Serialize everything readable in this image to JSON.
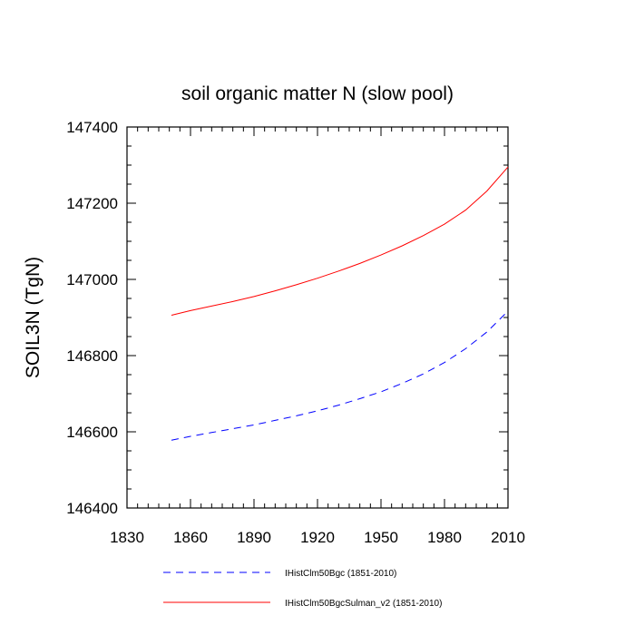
{
  "chart_data": {
    "type": "line",
    "title": "soil organic matter N (slow pool)",
    "xlabel": "",
    "ylabel": "SOIL3N  (TgN)",
    "xlim": [
      1830,
      2010
    ],
    "ylim": [
      146400,
      147400
    ],
    "x_ticks": [
      1830,
      1860,
      1890,
      1920,
      1950,
      1980,
      2010
    ],
    "y_ticks": [
      146400,
      146600,
      146800,
      147000,
      147200,
      147400
    ],
    "grid": false,
    "legend_position": "bottom",
    "series": [
      {
        "name": "IHistClm50Bgc (1851-2010)",
        "color": "#0000ff",
        "dash": "dashed",
        "x": [
          1851,
          1860,
          1870,
          1880,
          1890,
          1900,
          1910,
          1920,
          1930,
          1940,
          1950,
          1960,
          1970,
          1980,
          1990,
          2000,
          2010
        ],
        "y": [
          146578,
          146588,
          146598,
          146608,
          146618,
          146630,
          146642,
          146655,
          146670,
          146687,
          146705,
          146727,
          146752,
          146782,
          146818,
          146862,
          146917
        ]
      },
      {
        "name": "IHistClm50BgcSulman_v2 (1851-2010)",
        "color": "#ff0000",
        "dash": "solid",
        "x": [
          1851,
          1860,
          1870,
          1880,
          1890,
          1900,
          1910,
          1920,
          1930,
          1940,
          1950,
          1960,
          1970,
          1980,
          1990,
          2000,
          2010
        ],
        "y": [
          146906,
          146918,
          146930,
          146942,
          146955,
          146970,
          146986,
          147003,
          147022,
          147042,
          147064,
          147088,
          147115,
          147145,
          147182,
          147232,
          147295
        ]
      }
    ]
  }
}
